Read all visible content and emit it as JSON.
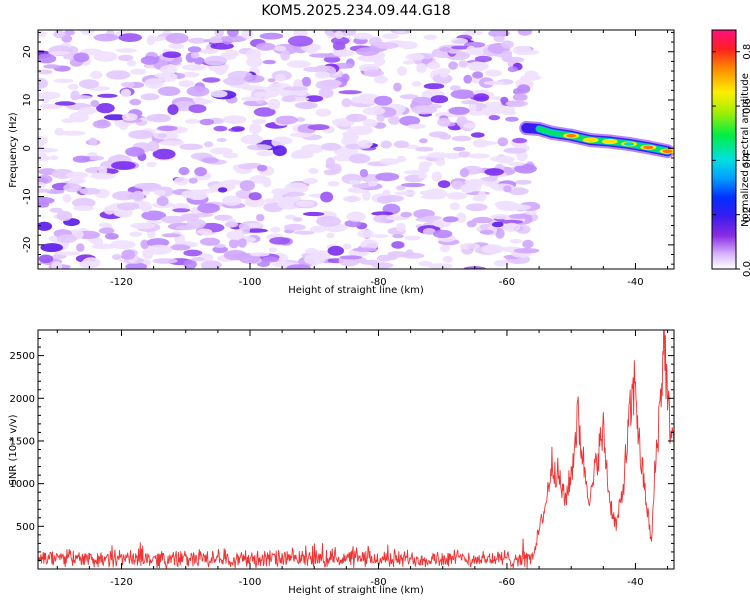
{
  "title": "KOM5.2025.234.09.44.G18",
  "chart_data": [
    {
      "type": "heatmap",
      "title": "KOM5.2025.234.09.44.G18",
      "xlabel": "Height of straight line (km)",
      "ylabel": "Frequency (Hz)",
      "xlim": [
        -133,
        -34
      ],
      "ylim": [
        -25,
        24.5
      ],
      "xticks": [
        -120,
        -100,
        -80,
        -60,
        -40
      ],
      "yticks": [
        -20,
        -10,
        0,
        10,
        20
      ],
      "noise_region_x": [
        -133,
        -56
      ],
      "signal_track": [
        {
          "x": -57,
          "y": 4.2,
          "amp": 0.35
        },
        {
          "x": -55,
          "y": 4.0,
          "amp": 0.45
        },
        {
          "x": -53,
          "y": 3.2,
          "amp": 0.55
        },
        {
          "x": -50,
          "y": 2.6,
          "amp": 0.85
        },
        {
          "x": -47,
          "y": 1.7,
          "amp": 0.78
        },
        {
          "x": -44,
          "y": 1.4,
          "amp": 0.82
        },
        {
          "x": -41,
          "y": 0.9,
          "amp": 0.65
        },
        {
          "x": -38,
          "y": 0.2,
          "amp": 0.85
        },
        {
          "x": -35,
          "y": -0.6,
          "amp": 0.88
        }
      ],
      "colorbar": {
        "label": "Normalized spectral amplitude",
        "range": [
          0.0,
          0.88
        ],
        "ticks": [
          "0.0",
          "0.2",
          "0.4",
          "0.6",
          "0.8"
        ]
      }
    },
    {
      "type": "line",
      "xlabel": "Height of straight line (km)",
      "ylabel": "SNR (10 * v/v)",
      "xlim": [
        -133,
        -34
      ],
      "ylim": [
        0,
        2800
      ],
      "xticks": [
        -120,
        -100,
        -80,
        -60,
        -40
      ],
      "yticks": [
        500,
        1000,
        1500,
        2000,
        2500
      ],
      "series": [
        {
          "name": "SNR",
          "color": "#ee3333",
          "noise_floor": {
            "x_range": [
              -133,
              -56
            ],
            "mean": 120,
            "spread": 130
          },
          "keypoints": [
            {
              "x": -56,
              "y": 150
            },
            {
              "x": -55,
              "y": 450
            },
            {
              "x": -54,
              "y": 750
            },
            {
              "x": -53,
              "y": 1250
            },
            {
              "x": -52,
              "y": 1100
            },
            {
              "x": -51,
              "y": 800
            },
            {
              "x": -50,
              "y": 1100
            },
            {
              "x": -49,
              "y": 1800
            },
            {
              "x": -48,
              "y": 1200
            },
            {
              "x": -47,
              "y": 800
            },
            {
              "x": -46,
              "y": 1300
            },
            {
              "x": -45,
              "y": 1600
            },
            {
              "x": -44,
              "y": 800
            },
            {
              "x": -43,
              "y": 500
            },
            {
              "x": -42,
              "y": 900
            },
            {
              "x": -41,
              "y": 1700
            },
            {
              "x": -40,
              "y": 2250
            },
            {
              "x": -39.5,
              "y": 1500
            },
            {
              "x": -38.5,
              "y": 900
            },
            {
              "x": -37.5,
              "y": 300
            },
            {
              "x": -37,
              "y": 1100
            },
            {
              "x": -36,
              "y": 2100
            },
            {
              "x": -35.5,
              "y": 2800
            },
            {
              "x": -35,
              "y": 1900
            },
            {
              "x": -34,
              "y": 1450
            }
          ]
        }
      ]
    }
  ]
}
